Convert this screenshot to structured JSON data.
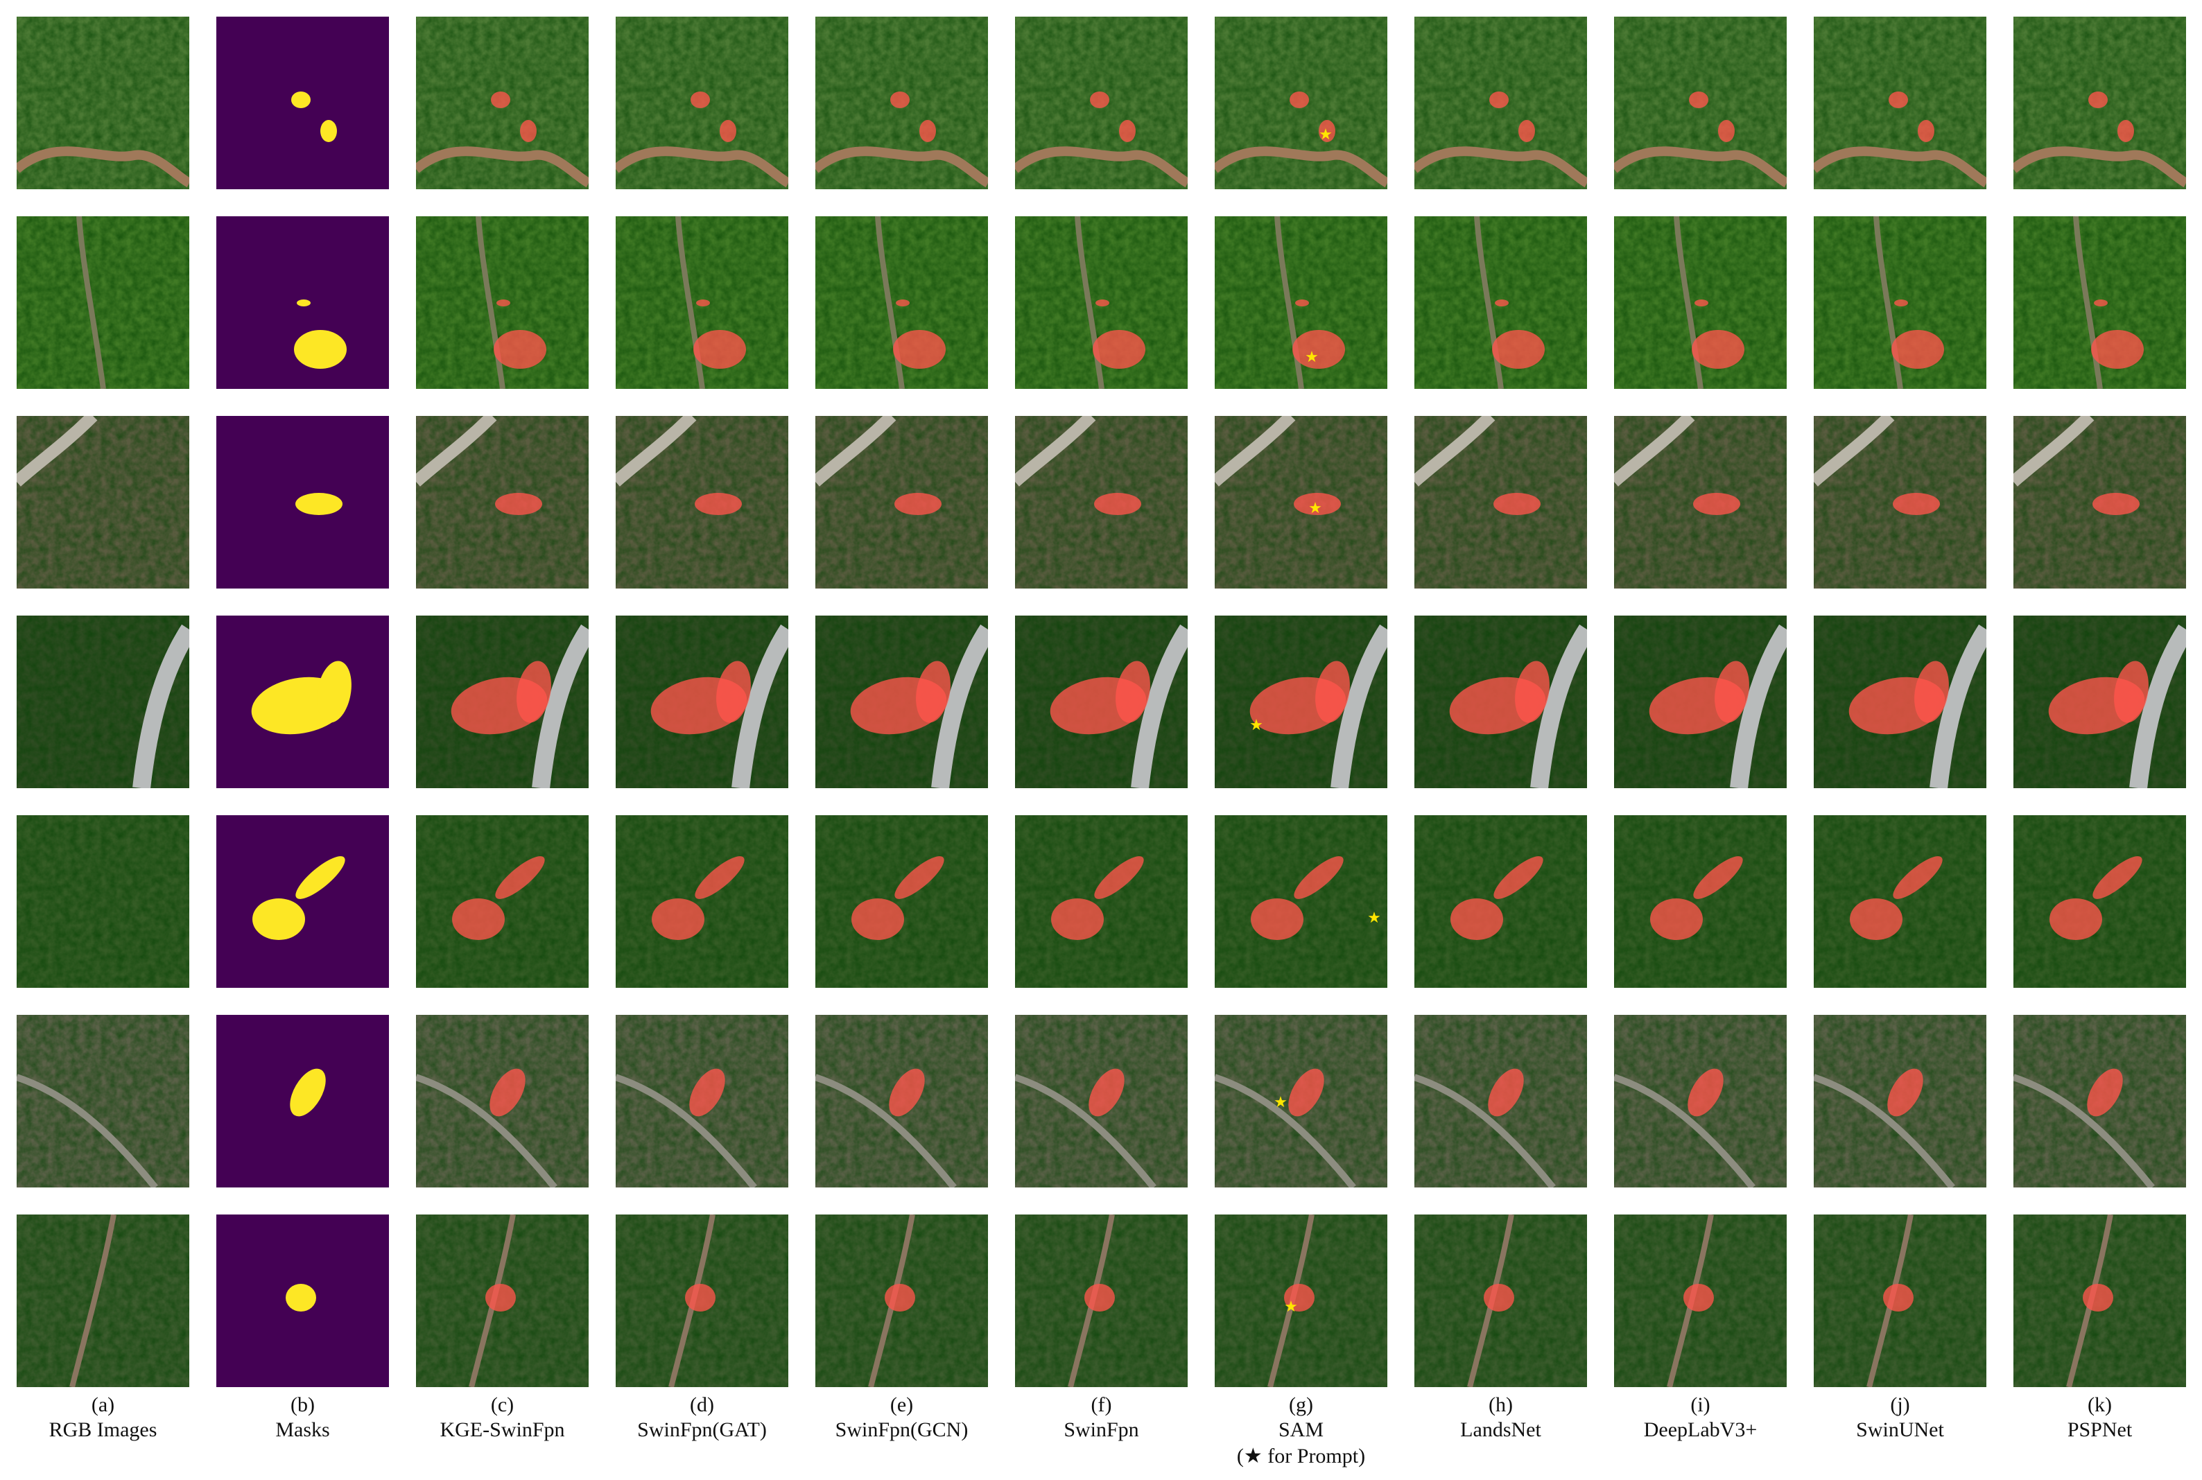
{
  "figure": {
    "columns": [
      {
        "letter": "(a)",
        "name": "RGB Images"
      },
      {
        "letter": "(b)",
        "name": "Masks"
      },
      {
        "letter": "(c)",
        "name": "KGE-SwinFpn"
      },
      {
        "letter": "(d)",
        "name": "SwinFpn(GAT)"
      },
      {
        "letter": "(e)",
        "name": "SwinFpn(GCN)"
      },
      {
        "letter": "(f)",
        "name": "SwinFpn"
      },
      {
        "letter": "(g)",
        "name": "SAM",
        "note": "(★ for Prompt)"
      },
      {
        "letter": "(h)",
        "name": "LandsNet"
      },
      {
        "letter": "(i)",
        "name": "DeepLabV3+"
      },
      {
        "letter": "(j)",
        "name": "SwinUNet"
      },
      {
        "letter": "(k)",
        "name": "PSPNet"
      }
    ]
  }
}
